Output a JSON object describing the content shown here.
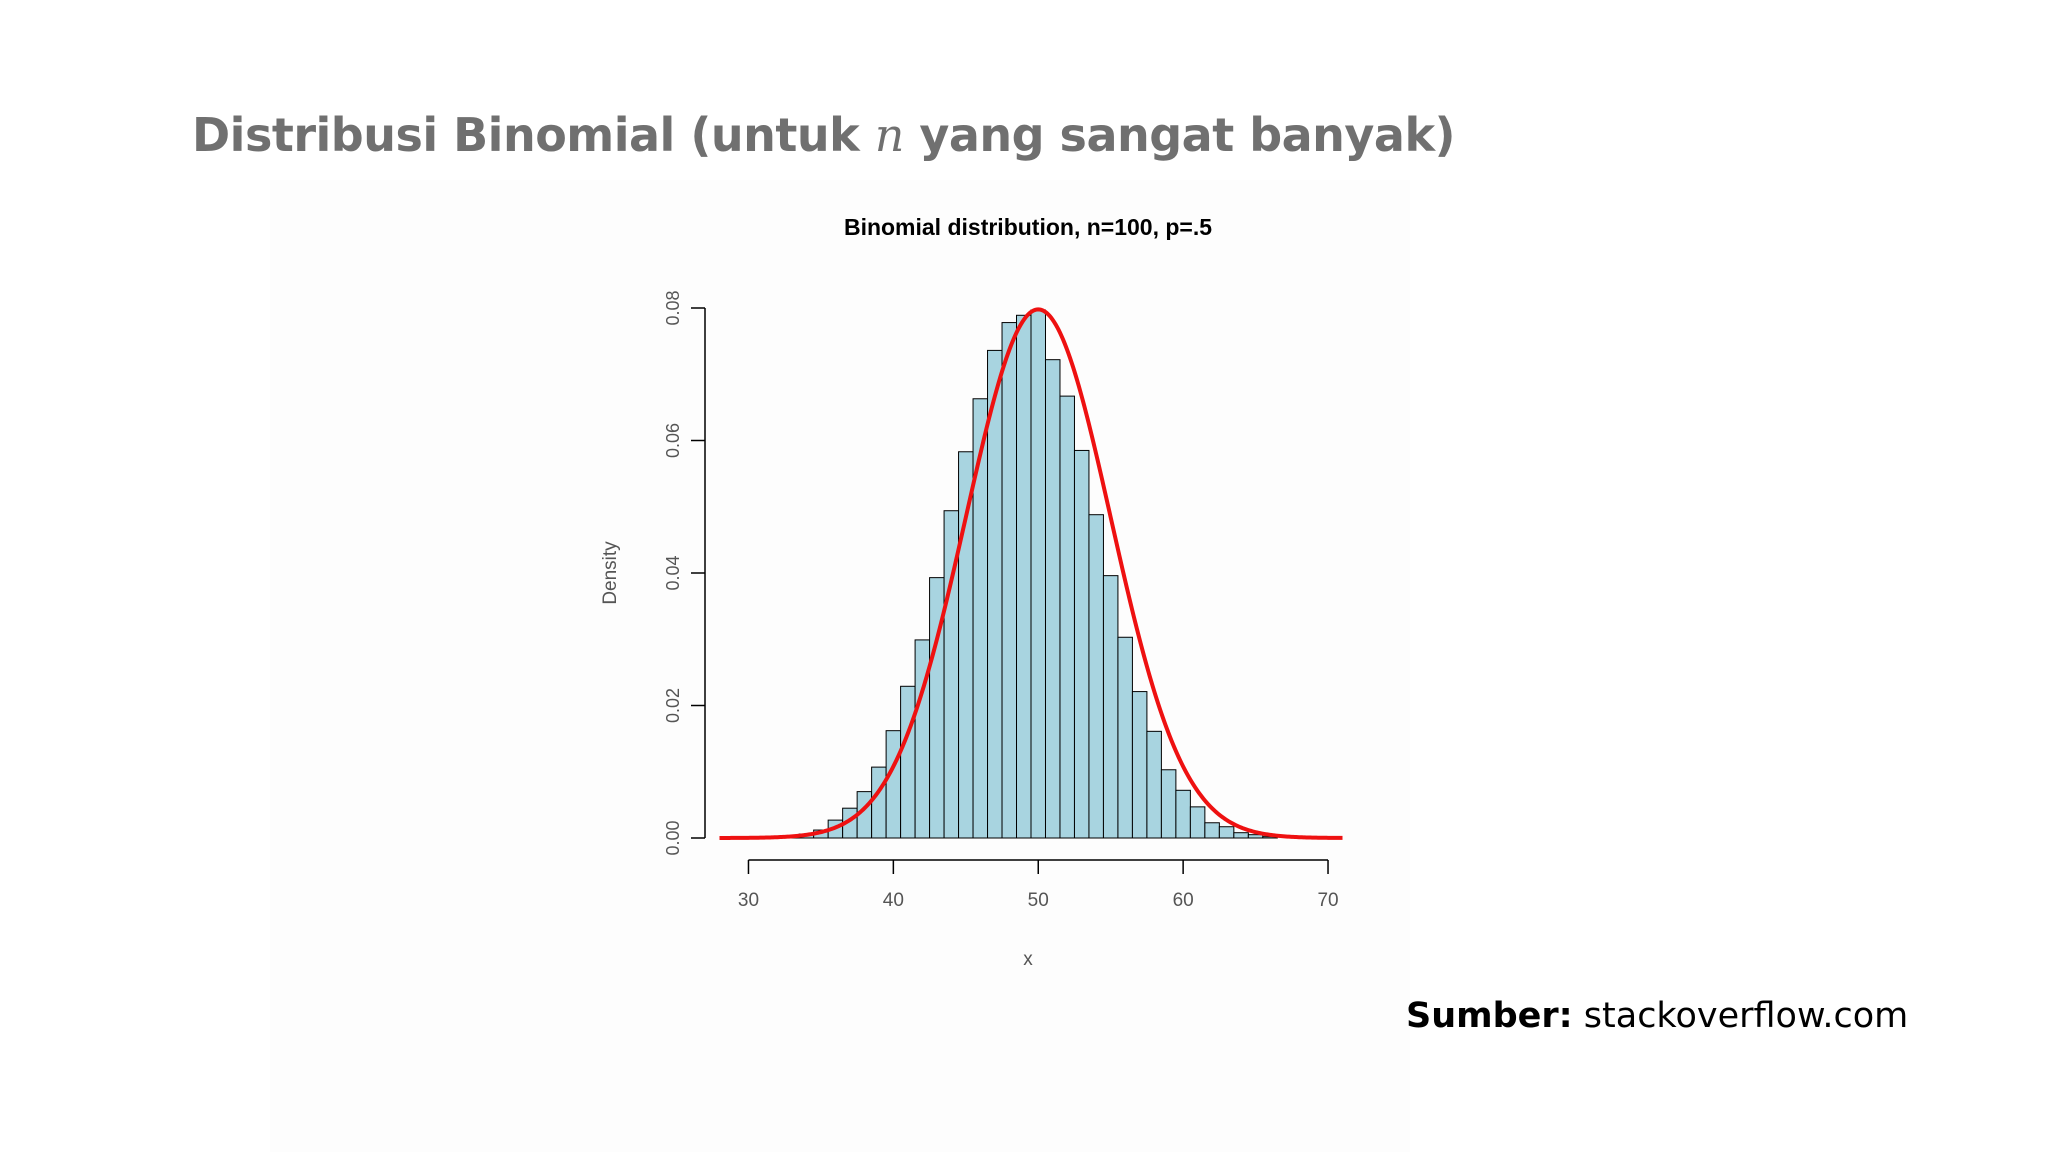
{
  "slide": {
    "title_prefix": "Distribusi Binomial (untuk ",
    "title_math": "n",
    "title_suffix": " yang sangat banyak)",
    "source_label": "Sumber:",
    "source_value": " stackoverflow.com"
  },
  "chart_data": {
    "type": "bar",
    "title": "Binomial distribution, n=100, p=.5",
    "xlabel": "x",
    "ylabel": "Density",
    "xlim": [
      27,
      72
    ],
    "ylim": [
      0,
      0.08
    ],
    "x_ticks": [
      "30",
      "40",
      "50",
      "60",
      "70"
    ],
    "y_ticks": [
      "0.00",
      "0.02",
      "0.04",
      "0.06",
      "0.08"
    ],
    "bar_color": "#a8d4e0",
    "bin_width": 1,
    "bins": [
      {
        "x": 33,
        "value": 0.0003
      },
      {
        "x": 34,
        "value": 0.0006
      },
      {
        "x": 35,
        "value": 0.0012
      },
      {
        "x": 36,
        "value": 0.0027
      },
      {
        "x": 37,
        "value": 0.0045
      },
      {
        "x": 38,
        "value": 0.007
      },
      {
        "x": 39,
        "value": 0.0107
      },
      {
        "x": 40,
        "value": 0.0162
      },
      {
        "x": 41,
        "value": 0.0229
      },
      {
        "x": 42,
        "value": 0.0299
      },
      {
        "x": 43,
        "value": 0.0393
      },
      {
        "x": 44,
        "value": 0.0494
      },
      {
        "x": 45,
        "value": 0.0583
      },
      {
        "x": 46,
        "value": 0.0663
      },
      {
        "x": 47,
        "value": 0.0736
      },
      {
        "x": 48,
        "value": 0.0778
      },
      {
        "x": 49,
        "value": 0.0789
      },
      {
        "x": 50,
        "value": 0.0797
      },
      {
        "x": 51,
        "value": 0.0722
      },
      {
        "x": 52,
        "value": 0.0667
      },
      {
        "x": 53,
        "value": 0.0585
      },
      {
        "x": 54,
        "value": 0.0488
      },
      {
        "x": 55,
        "value": 0.0396
      },
      {
        "x": 56,
        "value": 0.0303
      },
      {
        "x": 57,
        "value": 0.0221
      },
      {
        "x": 58,
        "value": 0.0161
      },
      {
        "x": 59,
        "value": 0.0103
      },
      {
        "x": 60,
        "value": 0.0072
      },
      {
        "x": 61,
        "value": 0.0047
      },
      {
        "x": 62,
        "value": 0.0023
      },
      {
        "x": 63,
        "value": 0.0017
      },
      {
        "x": 64,
        "value": 0.0008
      },
      {
        "x": 65,
        "value": 0.0005
      },
      {
        "x": 66,
        "value": 0.0002
      }
    ],
    "curve": {
      "type": "normal",
      "mean": 50,
      "sd": 5,
      "color": "#ee1111",
      "x_range": [
        28,
        71
      ]
    }
  }
}
